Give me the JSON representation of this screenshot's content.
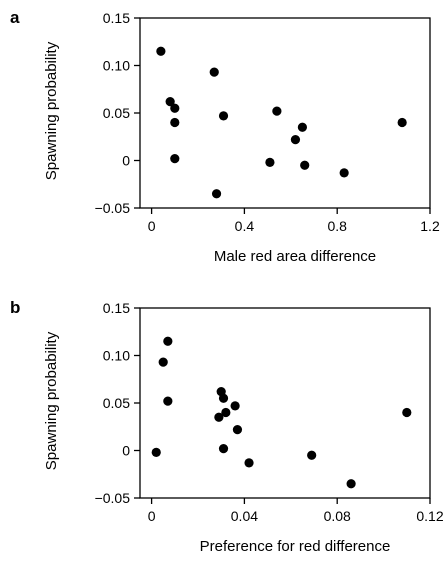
{
  "chart_data": [
    {
      "type": "scatter",
      "panel_label": "a",
      "title": "",
      "xlabel": "Male red area difference",
      "ylabel": "Spawning probability",
      "xlim": [
        -0.05,
        1.2
      ],
      "ylim": [
        -0.05,
        0.15
      ],
      "xticks": [
        0,
        0.4,
        0.8,
        1.2
      ],
      "xtick_labels": [
        "0",
        "0.4",
        "0.8",
        "1.2"
      ],
      "yticks": [
        -0.05,
        0,
        0.05,
        0.1,
        0.15
      ],
      "ytick_labels": [
        "−0.05",
        "0",
        "0.05",
        "0.10",
        "0.15"
      ],
      "grid": false,
      "series": [
        {
          "x": [
            0.04,
            0.08,
            0.1,
            0.1,
            0.1,
            0.27,
            0.28,
            0.31,
            0.51,
            0.54,
            0.62,
            0.65,
            0.66,
            0.83,
            1.08
          ],
          "y": [
            0.115,
            0.062,
            0.055,
            0.04,
            0.002,
            0.093,
            -0.035,
            0.047,
            -0.002,
            0.052,
            0.022,
            0.035,
            -0.005,
            -0.013,
            0.04
          ]
        }
      ]
    },
    {
      "type": "scatter",
      "panel_label": "b",
      "title": "",
      "xlabel": "Preference for red difference",
      "ylabel": "Spawning probability",
      "xlim": [
        -0.005,
        0.12
      ],
      "ylim": [
        -0.05,
        0.15
      ],
      "xticks": [
        0,
        0.04,
        0.08,
        0.12
      ],
      "xtick_labels": [
        "0",
        "0.04",
        "0.08",
        "0.12"
      ],
      "yticks": [
        -0.05,
        0,
        0.05,
        0.1,
        0.15
      ],
      "ytick_labels": [
        "−0.05",
        "0",
        "0.05",
        "0.10",
        "0.15"
      ],
      "grid": false,
      "series": [
        {
          "x": [
            0.002,
            0.005,
            0.007,
            0.007,
            0.029,
            0.03,
            0.031,
            0.031,
            0.032,
            0.036,
            0.037,
            0.042,
            0.069,
            0.086,
            0.11
          ],
          "y": [
            -0.002,
            0.093,
            0.115,
            0.052,
            0.035,
            0.062,
            0.055,
            0.002,
            0.04,
            0.047,
            0.022,
            -0.013,
            -0.005,
            -0.035,
            0.04
          ]
        }
      ]
    }
  ]
}
